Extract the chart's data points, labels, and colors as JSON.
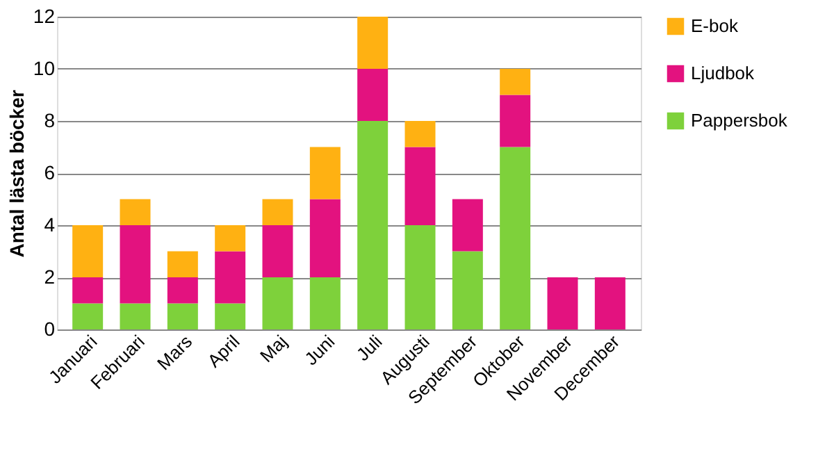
{
  "chart_data": {
    "type": "bar",
    "stacked": true,
    "ylabel": "Antal lästa böcker",
    "categories": [
      "Januari",
      "Februari",
      "Mars",
      "April",
      "Maj",
      "Juni",
      "Juli",
      "Augusti",
      "September",
      "Oktober",
      "November",
      "December"
    ],
    "series": [
      {
        "name": "Pappersbok",
        "color": "#7ed13b",
        "values": [
          1,
          1,
          1,
          1,
          2,
          2,
          8,
          4,
          3,
          7,
          0,
          0
        ]
      },
      {
        "name": "Ljudbok",
        "color": "#e3127f",
        "values": [
          1,
          3,
          1,
          2,
          2,
          3,
          2,
          3,
          2,
          2,
          2,
          2
        ]
      },
      {
        "name": "E-bok",
        "color": "#ffb112",
        "values": [
          2,
          1,
          1,
          1,
          1,
          2,
          2,
          1,
          0,
          1,
          0,
          0
        ]
      }
    ],
    "ylim": [
      0,
      12
    ],
    "yticks": [
      0,
      2,
      4,
      6,
      8,
      10,
      12
    ],
    "grid": "y",
    "legend": "right"
  }
}
